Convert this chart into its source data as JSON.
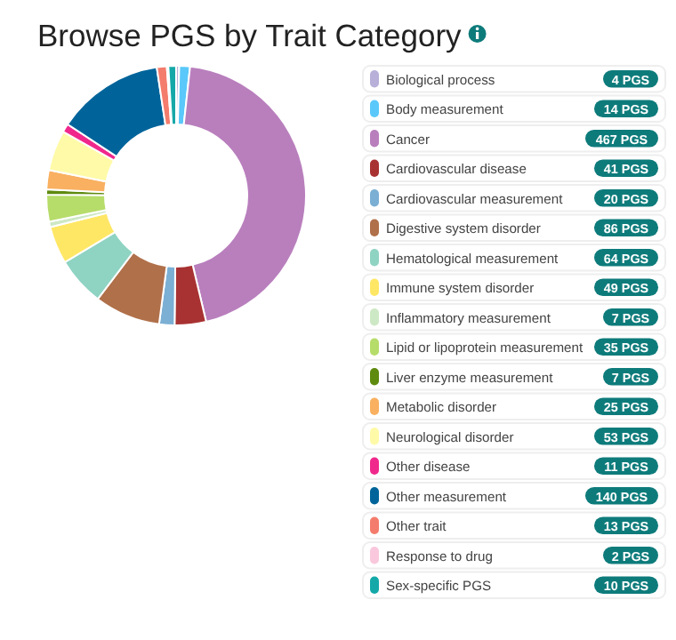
{
  "chart_data": {
    "type": "donut",
    "title": "Browse PGS by Trait Category",
    "categories": [
      "Biological process",
      "Body measurement",
      "Cancer",
      "Cardiovascular disease",
      "Cardiovascular measurement",
      "Digestive system disorder",
      "Hematological measurement",
      "Immune system disorder",
      "Inflammatory measurement",
      "Lipid or lipoprotein measurement",
      "Liver enzyme measurement",
      "Metabolic disorder",
      "Neurological disorder",
      "Other disease",
      "Other measurement",
      "Other trait",
      "Response to drug",
      "Sex-specific PGS"
    ],
    "values": [
      4,
      14,
      467,
      41,
      20,
      86,
      64,
      49,
      7,
      35,
      7,
      25,
      53,
      11,
      140,
      13,
      2,
      10
    ],
    "colors": [
      "#b8b0d8",
      "#5ac8fa",
      "#b97fbd",
      "#a83232",
      "#7bafd4",
      "#b0704a",
      "#8fd3c3",
      "#ffe766",
      "#cde8c4",
      "#b6dc6a",
      "#5e8a0e",
      "#f9b060",
      "#fffaa8",
      "#f0288c",
      "#00649a",
      "#f47c6c",
      "#f9c8dc",
      "#15a8a8"
    ],
    "value_labels": [
      "4 PGS",
      "14 PGS",
      "467 PGS",
      "41 PGS",
      "20 PGS",
      "86 PGS",
      "64 PGS",
      "49 PGS",
      "7 PGS",
      "35 PGS",
      "7 PGS",
      "25 PGS",
      "53 PGS",
      "11 PGS",
      "140 PGS",
      "13 PGS",
      "2 PGS",
      "10 PGS"
    ],
    "legend": "right"
  }
}
